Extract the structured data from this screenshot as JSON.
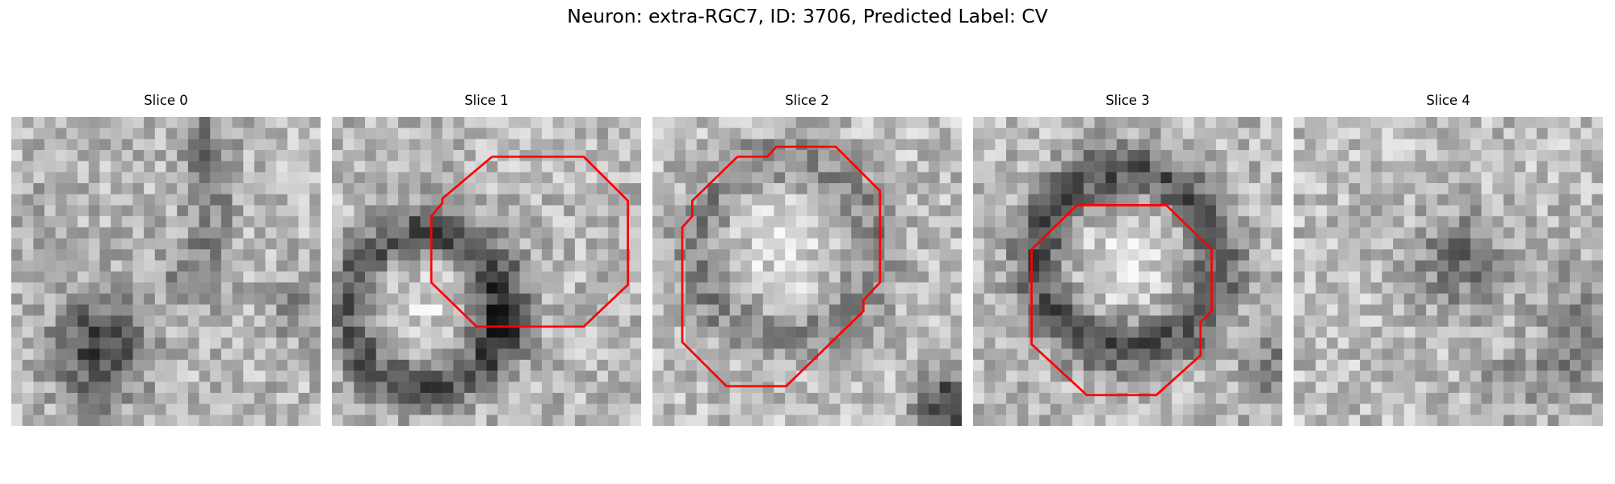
{
  "figure": {
    "title": "Neuron: extra-RGC7, ID: 3706, Predicted Label: CV",
    "outline_color": "#ff0000"
  },
  "panels": [
    {
      "title": "Slice 0",
      "has_outline": false,
      "pattern": "dark streak down the center, dark blob lower-left"
    },
    {
      "title": "Slice 1",
      "has_outline": true,
      "pattern": "dark ring with bright interior, outlined octagon upper-right"
    },
    {
      "title": "Slice 2",
      "has_outline": true,
      "pattern": "faint ring, large outlined region, dark bottom-right corner"
    },
    {
      "title": "Slice 3",
      "has_outline": true,
      "pattern": "dark ring around bright center, outlined octagon"
    },
    {
      "title": "Slice 4",
      "has_outline": false,
      "pattern": "noisy texture, dark band right"
    }
  ]
}
